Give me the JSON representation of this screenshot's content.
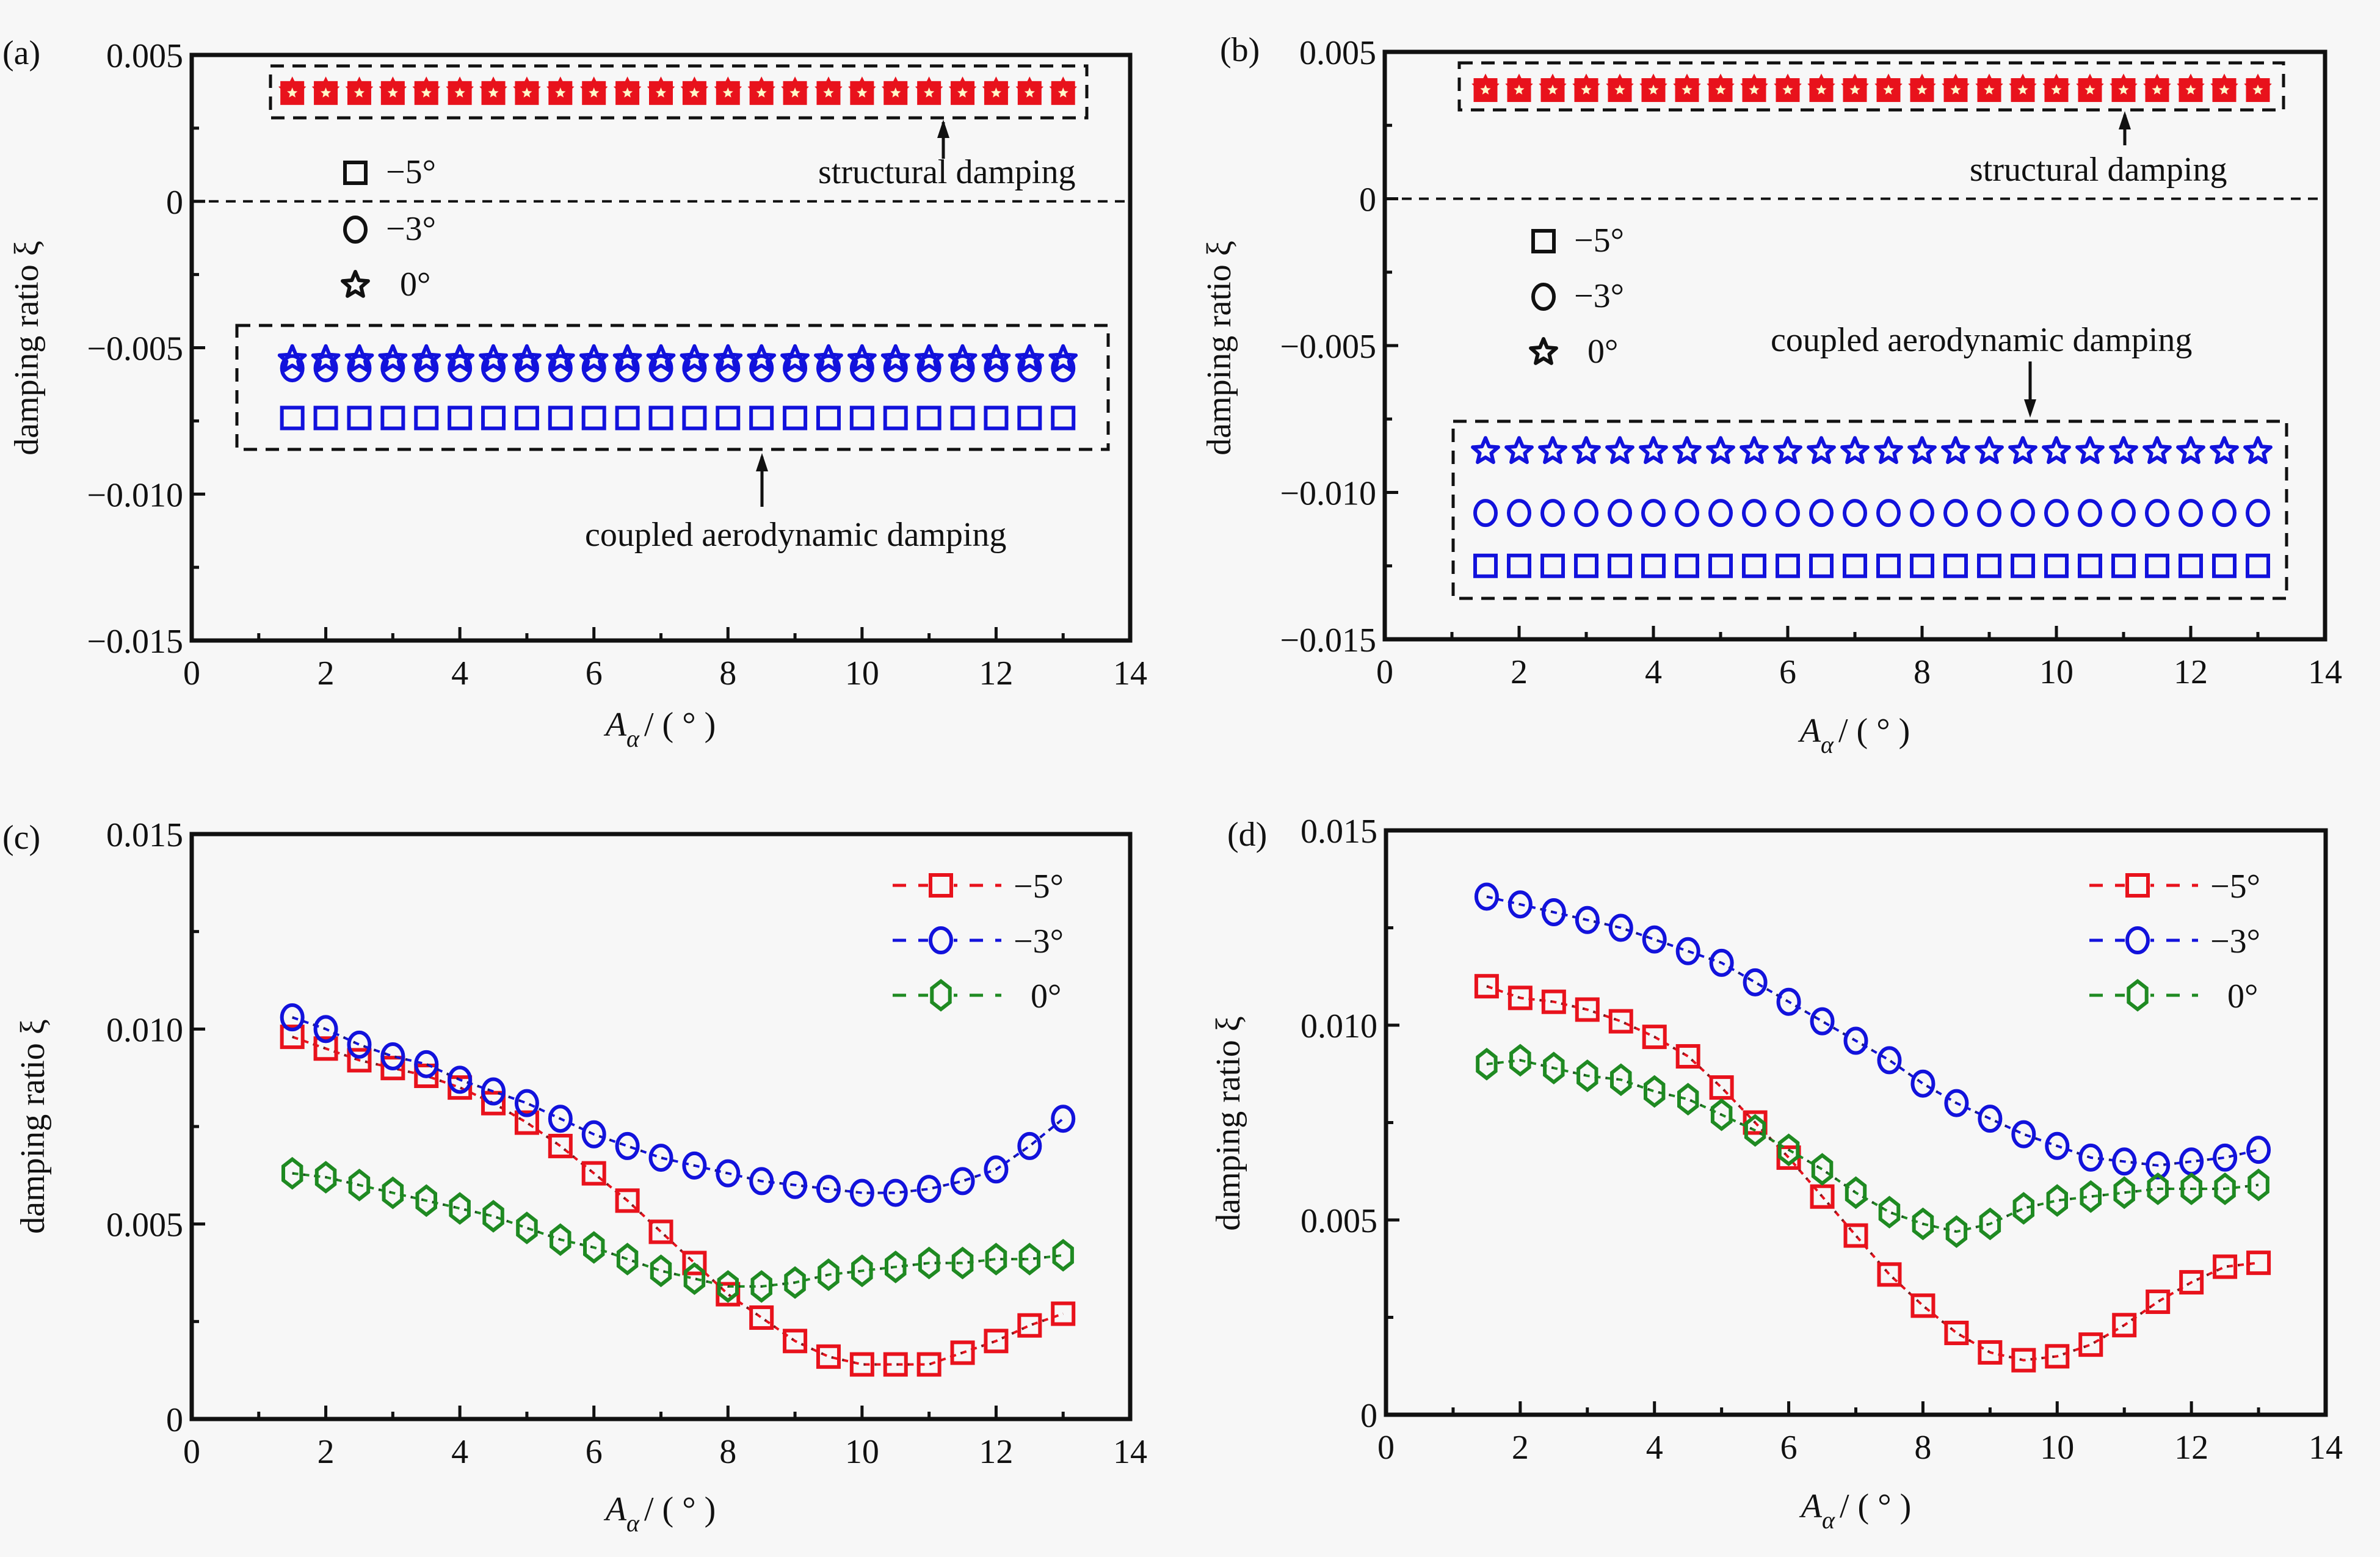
{
  "colors": {
    "red": "#e8121c",
    "blue": "#1212dc",
    "green": "#1f8a22",
    "black": "#111111",
    "background": "#f7f7f7"
  },
  "chart_data": [
    {
      "panel": "(a)",
      "type": "scatter",
      "xlabel_main": "A",
      "xlabel_sub": "α",
      "xlabel_unit": "/ ( ° )",
      "ylabel": "damping ratio ξ",
      "xlim": [
        0,
        14
      ],
      "ylim": [
        -0.015,
        0.005
      ],
      "xticks": [
        0,
        2,
        4,
        6,
        8,
        10,
        12,
        14
      ],
      "xtick_labels": [
        "0",
        "2",
        "4",
        "6",
        "8",
        "10",
        "12",
        "14"
      ],
      "yticks": [
        0.005,
        0,
        -0.005,
        -0.01,
        -0.015
      ],
      "ytick_labels": [
        "0.005",
        "0",
        "−0.005",
        "−0.010",
        "−0.015"
      ],
      "zero_line": true,
      "legend": {
        "placement": "upper-left",
        "entries": [
          {
            "label": "−5°",
            "marker": "square"
          },
          {
            "label": "−3°",
            "marker": "circle"
          },
          {
            "label": "0°",
            "marker": "star"
          }
        ]
      },
      "annotations": [
        "structural damping",
        "coupled aerodynamic damping"
      ],
      "x": [
        1.5,
        2,
        2.5,
        3,
        3.5,
        4,
        4.5,
        5,
        5.5,
        6,
        6.5,
        7,
        7.5,
        8,
        8.5,
        9,
        9.5,
        10,
        10.5,
        11,
        11.5,
        12,
        12.5,
        13
      ],
      "series": [
        {
          "name": "structural damping (all angles)",
          "color": "red",
          "marker": "structural",
          "value_constant": 0.0037
        },
        {
          "name": "0°",
          "color": "blue",
          "marker": "star",
          "value_constant": -0.0054
        },
        {
          "name": "−3°",
          "color": "blue",
          "marker": "circle",
          "value_constant": -0.0057
        },
        {
          "name": "−5°",
          "color": "blue",
          "marker": "square",
          "value_constant": -0.0074
        }
      ]
    },
    {
      "panel": "(b)",
      "type": "scatter",
      "xlabel_main": "A",
      "xlabel_sub": "α",
      "xlabel_unit": "/ ( ° )",
      "ylabel": "damping ratio ξ",
      "xlim": [
        0,
        14
      ],
      "ylim": [
        -0.015,
        0.005
      ],
      "xticks": [
        0,
        2,
        4,
        6,
        8,
        10,
        12,
        14
      ],
      "xtick_labels": [
        "0",
        "2",
        "4",
        "6",
        "8",
        "10",
        "12",
        "14"
      ],
      "yticks": [
        0.005,
        0,
        -0.005,
        -0.01,
        -0.015
      ],
      "ytick_labels": [
        "0.005",
        "0",
        "−0.005",
        "−0.010",
        "−0.015"
      ],
      "zero_line": true,
      "legend": {
        "placement": "upper-left",
        "entries": [
          {
            "label": "−5°",
            "marker": "square"
          },
          {
            "label": "−3°",
            "marker": "circle"
          },
          {
            "label": "0°",
            "marker": "star"
          }
        ]
      },
      "annotations": [
        "structural damping",
        "coupled aerodynamic damping"
      ],
      "x": [
        1.5,
        2,
        2.5,
        3,
        3.5,
        4,
        4.5,
        5,
        5.5,
        6,
        6.5,
        7,
        7.5,
        8,
        8.5,
        9,
        9.5,
        10,
        10.5,
        11,
        11.5,
        12,
        12.5,
        13
      ],
      "series": [
        {
          "name": "structural damping (all angles)",
          "color": "red",
          "marker": "structural",
          "value_constant": 0.0037
        },
        {
          "name": "0°",
          "color": "blue",
          "marker": "star",
          "value_constant": -0.0086
        },
        {
          "name": "−3°",
          "color": "blue",
          "marker": "circle",
          "value_constant": -0.0107
        },
        {
          "name": "−5°",
          "color": "blue",
          "marker": "square",
          "value_constant": -0.0125
        }
      ]
    },
    {
      "panel": "(c)",
      "type": "line",
      "xlabel_main": "A",
      "xlabel_sub": "α",
      "xlabel_unit": "/ ( ° )",
      "ylabel": "damping ratio ξ",
      "xlim": [
        0,
        14
      ],
      "ylim": [
        0,
        0.015
      ],
      "xticks": [
        0,
        2,
        4,
        6,
        8,
        10,
        12,
        14
      ],
      "xtick_labels": [
        "0",
        "2",
        "4",
        "6",
        "8",
        "10",
        "12",
        "14"
      ],
      "yticks": [
        0.015,
        0.01,
        0.005,
        0
      ],
      "ytick_labels": [
        "0.015",
        "0.010",
        "0.005",
        "0"
      ],
      "zero_line": false,
      "legend": {
        "placement": "top-right",
        "entries": [
          {
            "label": "−5°",
            "marker": "square",
            "color": "red"
          },
          {
            "label": "−3°",
            "marker": "circle",
            "color": "blue"
          },
          {
            "label": "0°",
            "marker": "hexagon",
            "color": "green"
          }
        ]
      },
      "x": [
        1.5,
        2,
        2.5,
        3,
        3.5,
        4,
        4.5,
        5,
        5.5,
        6,
        6.5,
        7,
        7.5,
        8,
        8.5,
        9,
        9.5,
        10,
        10.5,
        11,
        11.5,
        12,
        12.5,
        13
      ],
      "series": [
        {
          "name": "−5°",
          "color": "red",
          "marker": "square",
          "values": [
            0.0098,
            0.0095,
            0.0092,
            0.009,
            0.0088,
            0.0085,
            0.0081,
            0.0076,
            0.007,
            0.0063,
            0.0056,
            0.0048,
            0.004,
            0.0032,
            0.0026,
            0.002,
            0.0016,
            0.0014,
            0.0014,
            0.0014,
            0.0017,
            0.002,
            0.0024,
            0.0027
          ]
        },
        {
          "name": "−3°",
          "color": "blue",
          "marker": "circle",
          "values": [
            0.0103,
            0.01,
            0.0096,
            0.0093,
            0.0091,
            0.0087,
            0.0084,
            0.0081,
            0.0077,
            0.0073,
            0.007,
            0.0067,
            0.0065,
            0.0063,
            0.0061,
            0.006,
            0.0059,
            0.0058,
            0.0058,
            0.0059,
            0.0061,
            0.0064,
            0.007,
            0.0077
          ]
        },
        {
          "name": "0°",
          "color": "green",
          "marker": "hexagon",
          "values": [
            0.0063,
            0.0062,
            0.006,
            0.0058,
            0.0056,
            0.0054,
            0.0052,
            0.0049,
            0.0046,
            0.0044,
            0.0041,
            0.0038,
            0.0036,
            0.0034,
            0.0034,
            0.0035,
            0.0037,
            0.0038,
            0.0039,
            0.004,
            0.004,
            0.0041,
            0.0041,
            0.0042
          ]
        }
      ]
    },
    {
      "panel": "(d)",
      "type": "line",
      "xlabel_main": "A",
      "xlabel_sub": "α",
      "xlabel_unit": "/ ( ° )",
      "ylabel": "damping ratio ξ",
      "xlim": [
        0,
        14
      ],
      "ylim": [
        0,
        0.015
      ],
      "xticks": [
        0,
        2,
        4,
        6,
        8,
        10,
        12,
        14
      ],
      "xtick_labels": [
        "0",
        "2",
        "4",
        "6",
        "8",
        "10",
        "12",
        "14"
      ],
      "yticks": [
        0.015,
        0.01,
        0.005,
        0
      ],
      "ytick_labels": [
        "0.015",
        "0.010",
        "0.005",
        "0"
      ],
      "zero_line": false,
      "legend": {
        "placement": "top-right",
        "entries": [
          {
            "label": "−5°",
            "marker": "square",
            "color": "red"
          },
          {
            "label": "−3°",
            "marker": "circle",
            "color": "blue"
          },
          {
            "label": "0°",
            "marker": "hexagon",
            "color": "green"
          }
        ]
      },
      "x": [
        1.5,
        2,
        2.5,
        3,
        3.5,
        4,
        4.5,
        5,
        5.5,
        6,
        6.5,
        7,
        7.5,
        8,
        8.5,
        9,
        9.5,
        10,
        10.5,
        11,
        11.5,
        12,
        12.5,
        13
      ],
      "series": [
        {
          "name": "−5°",
          "color": "red",
          "marker": "square",
          "values": [
            0.011,
            0.0107,
            0.0106,
            0.0104,
            0.0101,
            0.0097,
            0.0092,
            0.0084,
            0.0075,
            0.0066,
            0.0056,
            0.0046,
            0.0036,
            0.0028,
            0.0021,
            0.0016,
            0.0014,
            0.0015,
            0.0018,
            0.0023,
            0.0029,
            0.0034,
            0.0038,
            0.0039
          ]
        },
        {
          "name": "−3°",
          "color": "blue",
          "marker": "circle",
          "values": [
            0.0133,
            0.0131,
            0.0129,
            0.0127,
            0.0125,
            0.0122,
            0.0119,
            0.0116,
            0.0111,
            0.0106,
            0.0101,
            0.0096,
            0.0091,
            0.0085,
            0.008,
            0.0076,
            0.0072,
            0.0069,
            0.0066,
            0.0065,
            0.0064,
            0.0065,
            0.0066,
            0.0068
          ]
        },
        {
          "name": "0°",
          "color": "green",
          "marker": "hexagon",
          "values": [
            0.009,
            0.0091,
            0.0089,
            0.0087,
            0.0086,
            0.0083,
            0.0081,
            0.0077,
            0.0073,
            0.0068,
            0.0063,
            0.0057,
            0.0052,
            0.0049,
            0.0047,
            0.0049,
            0.0053,
            0.0055,
            0.0056,
            0.0057,
            0.0058,
            0.0058,
            0.0058,
            0.0059
          ]
        }
      ]
    }
  ]
}
